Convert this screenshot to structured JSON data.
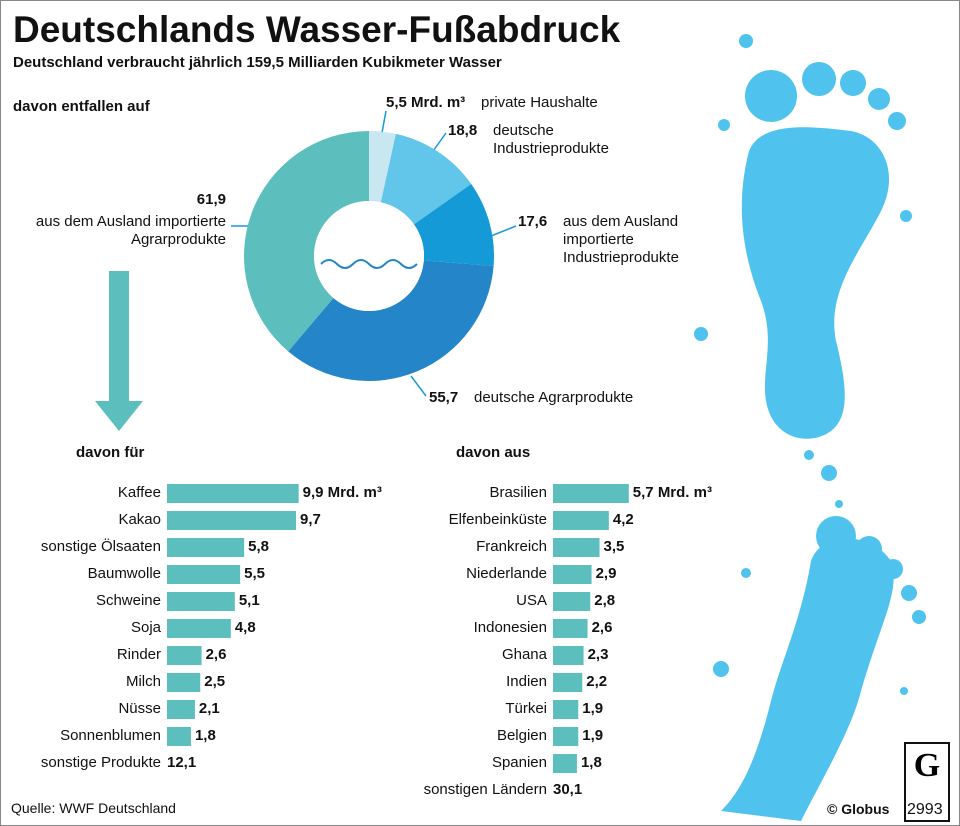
{
  "title": "Deutschlands Wasser-Fußabdruck",
  "subtitle": "Deutschland verbraucht jährlich 159,5 Milliarden Kubikmeter Wasser",
  "source": "Quelle: WWF Deutschland",
  "credit": "© Globus",
  "number": "2993",
  "chart_data": [
    {
      "type": "donut",
      "title": "davon entfallen auf",
      "categories": [
        "private Haushalte",
        "deutsche Industrieprodukte",
        "aus dem Ausland importierte Industrieprodukte",
        "deutsche Agrarprodukte",
        "aus dem Ausland importierte Agrarprodukte"
      ],
      "values": [
        5.5,
        18.8,
        17.6,
        55.7,
        61.9
      ],
      "value_labels": [
        "5,5 Mrd. m³",
        "18,8",
        "17,6",
        "55,7",
        "61,9"
      ],
      "colors": [
        "#c9e7f1",
        "#62c5ea",
        "#159ad8",
        "#2486c8",
        "#5dbfbd"
      ]
    },
    {
      "type": "bar",
      "title": "davon für",
      "color": "#5dbfbd",
      "categories": [
        "Kaffee",
        "Kakao",
        "sonstige Ölsaaten",
        "Baumwolle",
        "Schweine",
        "Soja",
        "Rinder",
        "Milch",
        "Nüsse",
        "Sonnenblumen"
      ],
      "values": [
        9.9,
        9.7,
        5.8,
        5.5,
        5.1,
        4.8,
        2.6,
        2.5,
        2.1,
        1.8
      ],
      "value_labels": [
        "9,9 Mrd. m³",
        "9,7",
        "5,8",
        "5,5",
        "5,1",
        "4,8",
        "2,6",
        "2,5",
        "2,1",
        "1,8"
      ],
      "rest": {
        "category": "sonstige Produkte",
        "value": 12.1,
        "value_label": "12,1"
      }
    },
    {
      "type": "bar",
      "title": "davon aus",
      "color": "#5dbfbd",
      "categories": [
        "Brasilien",
        "Elfenbeinküste",
        "Frankreich",
        "Niederlande",
        "USA",
        "Indonesien",
        "Ghana",
        "Indien",
        "Türkei",
        "Belgien",
        "Spanien"
      ],
      "values": [
        5.7,
        4.2,
        3.5,
        2.9,
        2.8,
        2.6,
        2.3,
        2.2,
        1.9,
        1.9,
        1.8
      ],
      "value_labels": [
        "5,7 Mrd. m³",
        "4,2",
        "3,5",
        "2,9",
        "2,8",
        "2,6",
        "2,3",
        "2,2",
        "1,9",
        "1,9",
        "1,8"
      ],
      "rest": {
        "category": "sonstigen Ländern",
        "value": 30.1,
        "value_label": "30,1"
      }
    }
  ]
}
